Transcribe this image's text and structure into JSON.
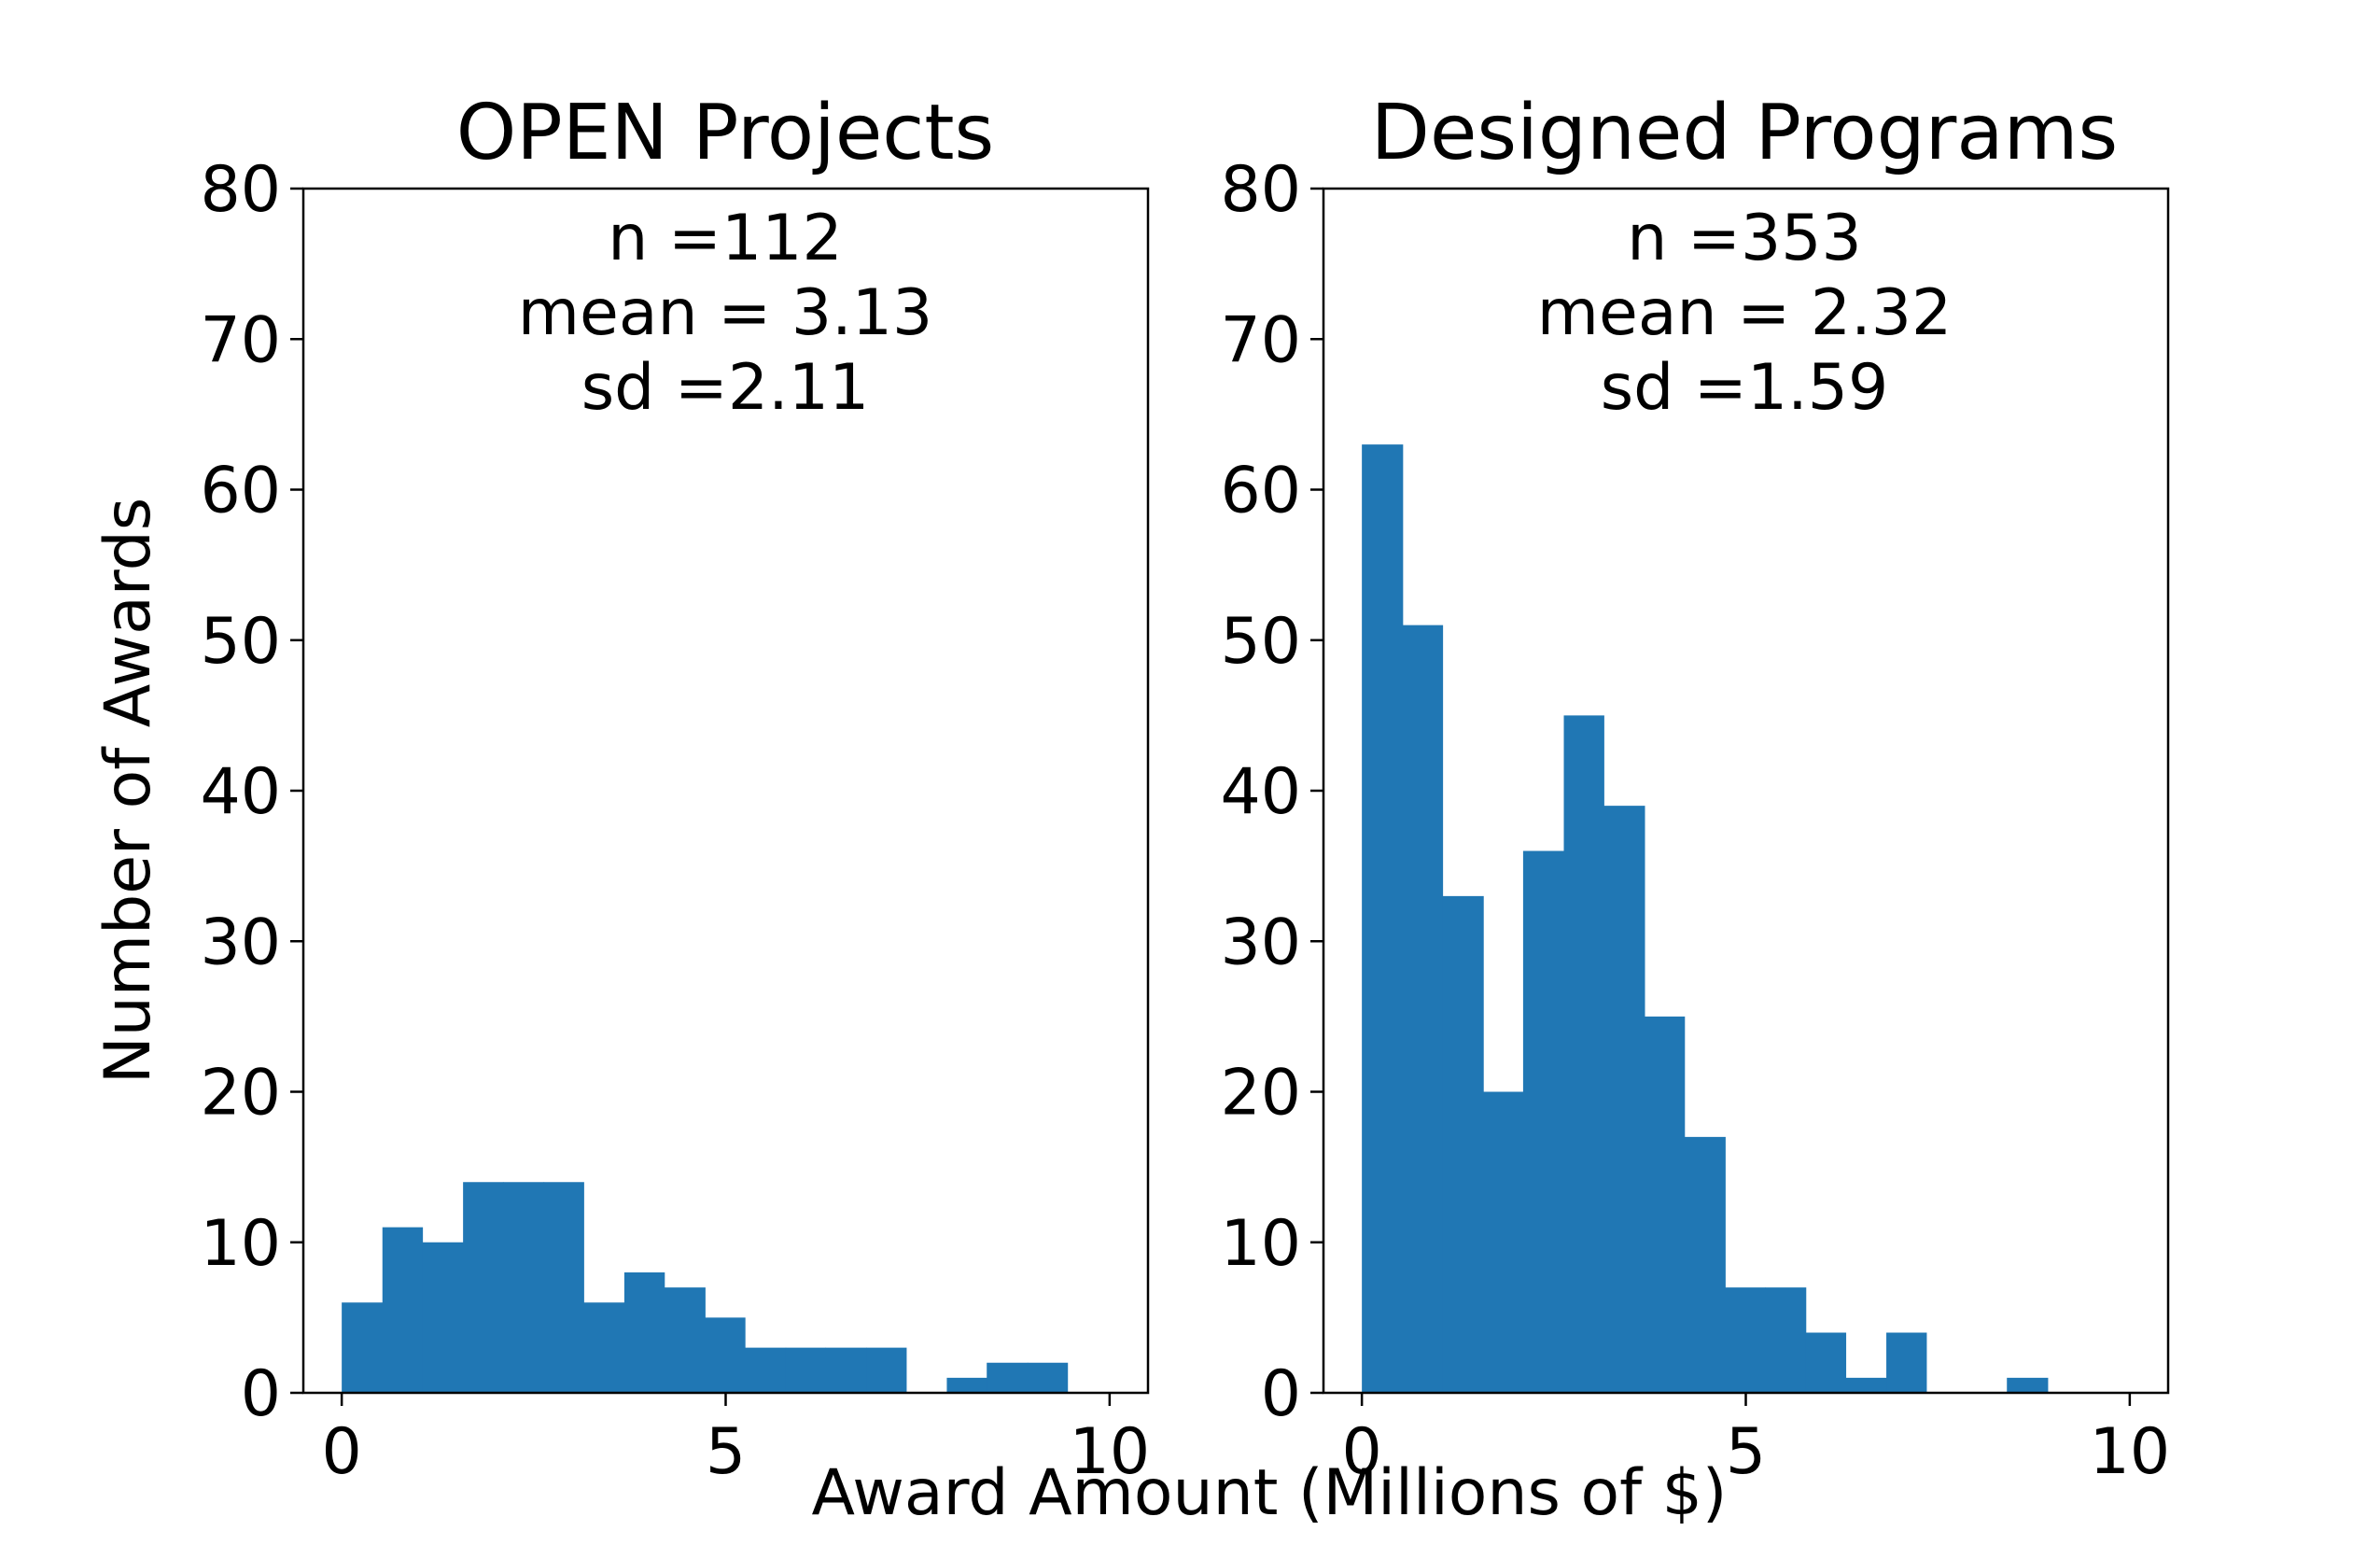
{
  "figure": {
    "xlabel": "Award Amount (Millions of $)",
    "ylabel": "Number of Awards"
  },
  "colors": {
    "bar": "#2077b4",
    "axes": "#000000",
    "background": "#ffffff"
  },
  "chart_data": [
    {
      "type": "bar",
      "title": "OPEN Projects",
      "stats": [
        "n =112",
        "mean = 3.13",
        "sd =2.11"
      ],
      "xlim": [
        -0.5,
        10.5
      ],
      "ylim": [
        0,
        80
      ],
      "xticks": [
        0,
        5,
        10
      ],
      "yticks": [
        0,
        10,
        20,
        30,
        40,
        50,
        60,
        70,
        80
      ],
      "bins": [
        {
          "x0": 0.0,
          "x1": 0.53,
          "count": 6
        },
        {
          "x0": 0.53,
          "x1": 1.05,
          "count": 11
        },
        {
          "x0": 1.05,
          "x1": 1.58,
          "count": 10
        },
        {
          "x0": 1.58,
          "x1": 2.1,
          "count": 14
        },
        {
          "x0": 2.1,
          "x1": 2.63,
          "count": 14
        },
        {
          "x0": 2.63,
          "x1": 3.15,
          "count": 14
        },
        {
          "x0": 3.15,
          "x1": 3.68,
          "count": 6
        },
        {
          "x0": 3.68,
          "x1": 4.2,
          "count": 8
        },
        {
          "x0": 4.2,
          "x1": 4.73,
          "count": 7
        },
        {
          "x0": 4.73,
          "x1": 5.25,
          "count": 5
        },
        {
          "x0": 5.25,
          "x1": 5.78,
          "count": 3
        },
        {
          "x0": 5.78,
          "x1": 6.3,
          "count": 3
        },
        {
          "x0": 6.3,
          "x1": 6.83,
          "count": 3
        },
        {
          "x0": 6.83,
          "x1": 7.35,
          "count": 3
        },
        {
          "x0": 7.35,
          "x1": 7.88,
          "count": 0
        },
        {
          "x0": 7.88,
          "x1": 8.4,
          "count": 1
        },
        {
          "x0": 8.4,
          "x1": 8.93,
          "count": 2
        },
        {
          "x0": 8.93,
          "x1": 9.45,
          "count": 2
        }
      ]
    },
    {
      "type": "bar",
      "title": "Designed Programs",
      "stats": [
        "n =353",
        "mean = 2.32",
        "sd =1.59"
      ],
      "xlim": [
        -0.5,
        10.5
      ],
      "ylim": [
        0,
        80
      ],
      "xticks": [
        0,
        5,
        10
      ],
      "yticks": [
        0,
        10,
        20,
        30,
        40,
        50,
        60,
        70,
        80
      ],
      "bins": [
        {
          "x0": 0.0,
          "x1": 0.53,
          "count": 63
        },
        {
          "x0": 0.53,
          "x1": 1.05,
          "count": 51
        },
        {
          "x0": 1.05,
          "x1": 1.58,
          "count": 33
        },
        {
          "x0": 1.58,
          "x1": 2.1,
          "count": 20
        },
        {
          "x0": 2.1,
          "x1": 2.63,
          "count": 36
        },
        {
          "x0": 2.63,
          "x1": 3.15,
          "count": 45
        },
        {
          "x0": 3.15,
          "x1": 3.68,
          "count": 39
        },
        {
          "x0": 3.68,
          "x1": 4.2,
          "count": 25
        },
        {
          "x0": 4.2,
          "x1": 4.73,
          "count": 17
        },
        {
          "x0": 4.73,
          "x1": 5.25,
          "count": 7
        },
        {
          "x0": 5.25,
          "x1": 5.78,
          "count": 7
        },
        {
          "x0": 5.78,
          "x1": 6.3,
          "count": 4
        },
        {
          "x0": 6.3,
          "x1": 6.83,
          "count": 1
        },
        {
          "x0": 6.83,
          "x1": 7.35,
          "count": 4
        },
        {
          "x0": 7.35,
          "x1": 7.88,
          "count": 0
        },
        {
          "x0": 7.88,
          "x1": 8.4,
          "count": 0
        },
        {
          "x0": 8.4,
          "x1": 8.93,
          "count": 1
        }
      ]
    }
  ]
}
